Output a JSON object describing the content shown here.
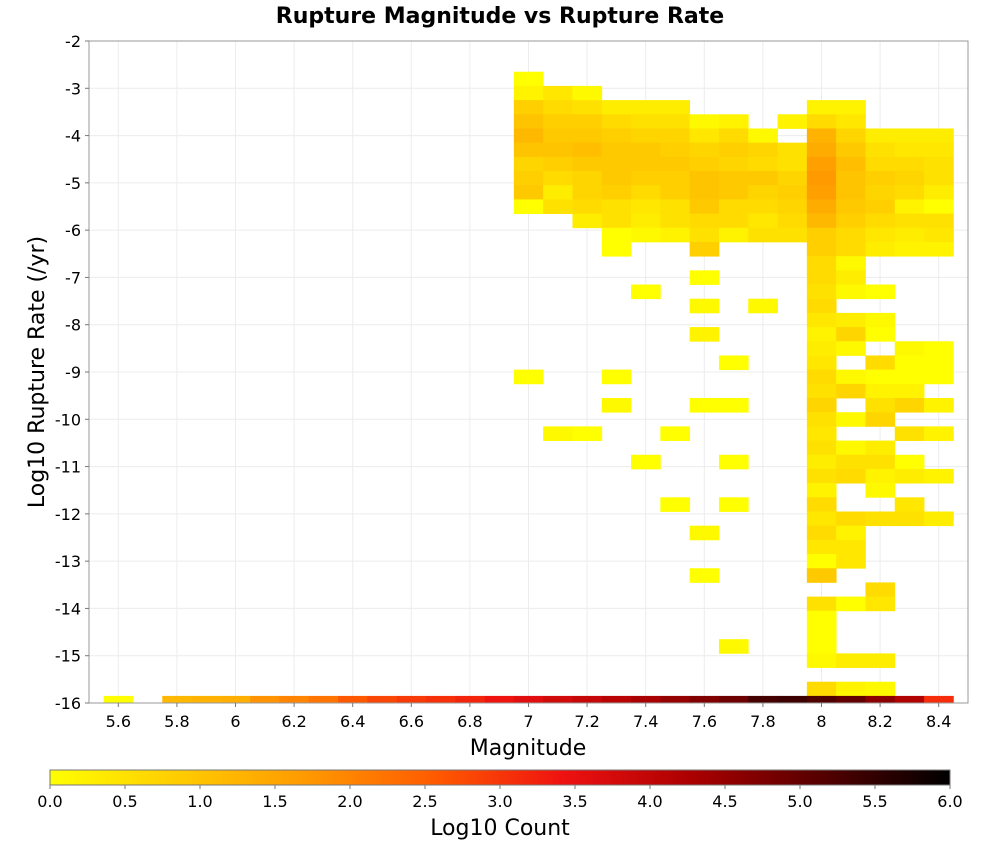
{
  "chart_data": {
    "type": "heatmap",
    "title": "Rupture Magnitude vs Rupture Rate",
    "xlabel": "Magnitude",
    "ylabel": "Log10 Rupture Rate (/yr)",
    "xlim": [
      5.5,
      8.5
    ],
    "ylim": [
      -16,
      -2
    ],
    "xticks": [
      "5.6",
      "5.8",
      "6",
      "6.2",
      "6.4",
      "6.6",
      "6.8",
      "7",
      "7.2",
      "7.4",
      "7.6",
      "7.8",
      "8",
      "8.2",
      "8.4"
    ],
    "xtick_values": [
      5.6,
      5.8,
      6,
      6.2,
      6.4,
      6.6,
      6.8,
      7,
      7.2,
      7.4,
      7.6,
      7.8,
      8,
      8.2,
      8.4
    ],
    "yticks": [
      "-2",
      "-3",
      "-4",
      "-5",
      "-6",
      "-7",
      "-8",
      "-9",
      "-10",
      "-11",
      "-12",
      "-13",
      "-14",
      "-15",
      "-16"
    ],
    "ytick_values": [
      -2,
      -3,
      -4,
      -5,
      -6,
      -7,
      -8,
      -9,
      -10,
      -11,
      -12,
      -13,
      -14,
      -15,
      -16
    ],
    "grid": true,
    "bin_width_x": 0.1,
    "bin_height_y": 0.3,
    "colorbar": {
      "label": "Log10 Count",
      "min": 0.0,
      "max": 6.0,
      "ticks": [
        "0.0",
        "0.5",
        "1.0",
        "1.5",
        "2.0",
        "2.5",
        "3.0",
        "3.5",
        "4.0",
        "4.5",
        "5.0",
        "5.5",
        "6.0"
      ],
      "tick_values": [
        0,
        0.5,
        1,
        1.5,
        2,
        2.5,
        3,
        3.5,
        4,
        4.5,
        5,
        5.5,
        6
      ],
      "colors": [
        "#ffff00",
        "#ffcc00",
        "#ff9900",
        "#ff5a00",
        "#ee1111",
        "#aa0000",
        "#550000",
        "#000000"
      ]
    },
    "bottom_row": {
      "y": -16,
      "x": [
        5.6,
        5.8,
        5.9,
        6.0,
        6.1,
        6.2,
        6.3,
        6.4,
        6.5,
        6.6,
        6.7,
        6.8,
        6.9,
        7.0,
        7.1,
        7.2,
        7.3,
        7.4,
        7.5,
        7.6,
        7.7,
        7.8,
        7.9,
        8.0,
        8.1,
        8.2,
        8.3,
        8.4
      ],
      "values": [
        0.0,
        1.2,
        1.3,
        1.35,
        1.8,
        2.0,
        2.2,
        2.6,
        2.8,
        2.95,
        3.05,
        3.2,
        3.4,
        3.6,
        3.8,
        3.95,
        4.1,
        4.3,
        4.5,
        4.7,
        4.9,
        5.3,
        5.4,
        5.2,
        5.0,
        4.6,
        4.2,
        3.1
      ]
    },
    "cells": [
      [
        7.0,
        -2.8,
        0.0
      ],
      [
        7.0,
        -3.1,
        0.2
      ],
      [
        7.0,
        -3.4,
        0.8
      ],
      [
        7.0,
        -3.7,
        1.0
      ],
      [
        7.0,
        -4.0,
        1.2
      ],
      [
        7.0,
        -4.3,
        1.0
      ],
      [
        7.0,
        -4.6,
        0.7
      ],
      [
        7.0,
        -4.9,
        0.8
      ],
      [
        7.0,
        -5.2,
        0.9
      ],
      [
        7.0,
        -5.5,
        0.0
      ],
      [
        7.1,
        -3.1,
        0.4
      ],
      [
        7.1,
        -3.4,
        0.6
      ],
      [
        7.1,
        -3.7,
        0.8
      ],
      [
        7.1,
        -4.0,
        0.9
      ],
      [
        7.1,
        -4.3,
        1.0
      ],
      [
        7.1,
        -4.6,
        0.8
      ],
      [
        7.1,
        -4.9,
        0.6
      ],
      [
        7.1,
        -5.2,
        0.3
      ],
      [
        7.1,
        -5.5,
        0.5
      ],
      [
        7.2,
        -3.1,
        0.1
      ],
      [
        7.2,
        -3.4,
        0.5
      ],
      [
        7.2,
        -3.7,
        0.8
      ],
      [
        7.2,
        -4.0,
        0.9
      ],
      [
        7.2,
        -4.3,
        1.1
      ],
      [
        7.2,
        -4.6,
        0.9
      ],
      [
        7.2,
        -4.9,
        0.7
      ],
      [
        7.2,
        -5.2,
        0.7
      ],
      [
        7.2,
        -5.5,
        0.6
      ],
      [
        7.2,
        -5.8,
        0.3
      ],
      [
        7.3,
        -3.4,
        0.3
      ],
      [
        7.3,
        -3.7,
        0.6
      ],
      [
        7.3,
        -4.0,
        0.8
      ],
      [
        7.3,
        -4.3,
        0.9
      ],
      [
        7.3,
        -4.6,
        0.9
      ],
      [
        7.3,
        -4.9,
        0.9
      ],
      [
        7.3,
        -5.2,
        0.8
      ],
      [
        7.3,
        -5.5,
        0.5
      ],
      [
        7.3,
        -5.8,
        0.5
      ],
      [
        7.3,
        -6.1,
        0.0
      ],
      [
        7.3,
        -6.4,
        0.0
      ],
      [
        7.4,
        -3.4,
        0.3
      ],
      [
        7.4,
        -3.7,
        0.5
      ],
      [
        7.4,
        -4.0,
        0.7
      ],
      [
        7.4,
        -4.3,
        0.9
      ],
      [
        7.4,
        -4.6,
        0.9
      ],
      [
        7.4,
        -4.9,
        0.8
      ],
      [
        7.4,
        -5.2,
        0.6
      ],
      [
        7.4,
        -5.5,
        0.4
      ],
      [
        7.4,
        -5.8,
        0.3
      ],
      [
        7.4,
        -6.1,
        0.1
      ],
      [
        7.5,
        -3.4,
        0.3
      ],
      [
        7.5,
        -3.7,
        0.5
      ],
      [
        7.5,
        -4.0,
        0.7
      ],
      [
        7.5,
        -4.3,
        0.8
      ],
      [
        7.5,
        -4.6,
        0.9
      ],
      [
        7.5,
        -4.9,
        0.8
      ],
      [
        7.5,
        -5.2,
        0.8
      ],
      [
        7.5,
        -5.5,
        0.5
      ],
      [
        7.5,
        -5.8,
        0.5
      ],
      [
        7.5,
        -6.1,
        0.2
      ],
      [
        7.6,
        -3.7,
        0.1
      ],
      [
        7.6,
        -4.0,
        0.4
      ],
      [
        7.6,
        -4.3,
        0.7
      ],
      [
        7.6,
        -4.6,
        0.8
      ],
      [
        7.6,
        -4.9,
        1.0
      ],
      [
        7.6,
        -5.2,
        1.0
      ],
      [
        7.6,
        -5.5,
        0.9
      ],
      [
        7.6,
        -5.8,
        0.6
      ],
      [
        7.6,
        -6.1,
        0.5
      ],
      [
        7.6,
        -6.4,
        0.8
      ],
      [
        7.7,
        -3.7,
        0.2
      ],
      [
        7.7,
        -4.0,
        0.6
      ],
      [
        7.7,
        -4.3,
        0.8
      ],
      [
        7.7,
        -4.6,
        0.7
      ],
      [
        7.7,
        -4.9,
        0.9
      ],
      [
        7.7,
        -5.2,
        0.9
      ],
      [
        7.7,
        -5.5,
        0.6
      ],
      [
        7.7,
        -5.8,
        0.6
      ],
      [
        7.7,
        -6.1,
        0.2
      ],
      [
        7.8,
        -4.0,
        0.1
      ],
      [
        7.8,
        -4.3,
        0.7
      ],
      [
        7.8,
        -4.6,
        0.6
      ],
      [
        7.8,
        -4.9,
        0.9
      ],
      [
        7.8,
        -5.2,
        0.7
      ],
      [
        7.8,
        -5.5,
        0.6
      ],
      [
        7.8,
        -5.8,
        0.4
      ],
      [
        7.8,
        -6.1,
        0.5
      ],
      [
        7.9,
        -3.7,
        0.2
      ],
      [
        7.9,
        -4.3,
        0.5
      ],
      [
        7.9,
        -4.6,
        0.5
      ],
      [
        7.9,
        -4.9,
        0.7
      ],
      [
        7.9,
        -5.2,
        0.8
      ],
      [
        7.9,
        -5.5,
        0.7
      ],
      [
        7.9,
        -5.8,
        0.6
      ],
      [
        7.9,
        -6.1,
        0.5
      ],
      [
        8.0,
        -3.4,
        0.2
      ],
      [
        8.0,
        -3.7,
        0.6
      ],
      [
        8.0,
        -4.0,
        1.3
      ],
      [
        8.0,
        -4.3,
        1.4
      ],
      [
        8.0,
        -4.6,
        1.6
      ],
      [
        8.0,
        -4.9,
        1.7
      ],
      [
        8.0,
        -5.2,
        1.6
      ],
      [
        8.0,
        -5.5,
        1.4
      ],
      [
        8.0,
        -5.8,
        1.2
      ],
      [
        8.0,
        -6.1,
        0.8
      ],
      [
        8.0,
        -6.4,
        0.8
      ],
      [
        8.0,
        -6.7,
        0.6
      ],
      [
        8.1,
        -3.4,
        0.2
      ],
      [
        8.1,
        -3.7,
        0.4
      ],
      [
        8.1,
        -4.0,
        0.7
      ],
      [
        8.1,
        -4.3,
        0.9
      ],
      [
        8.1,
        -4.6,
        1.1
      ],
      [
        8.1,
        -4.9,
        1.0
      ],
      [
        8.1,
        -5.2,
        1.0
      ],
      [
        8.1,
        -5.5,
        0.9
      ],
      [
        8.1,
        -5.8,
        0.8
      ],
      [
        8.1,
        -6.1,
        0.6
      ],
      [
        8.1,
        -6.4,
        0.6
      ],
      [
        8.1,
        -6.7,
        0.1
      ],
      [
        8.2,
        -4.0,
        0.3
      ],
      [
        8.2,
        -4.3,
        0.5
      ],
      [
        8.2,
        -4.6,
        0.6
      ],
      [
        8.2,
        -4.9,
        0.8
      ],
      [
        8.2,
        -5.2,
        0.7
      ],
      [
        8.2,
        -5.5,
        0.8
      ],
      [
        8.2,
        -5.8,
        0.6
      ],
      [
        8.2,
        -6.1,
        0.4
      ],
      [
        8.2,
        -6.4,
        0.3
      ],
      [
        8.3,
        -4.0,
        0.3
      ],
      [
        8.3,
        -4.3,
        0.4
      ],
      [
        8.3,
        -4.6,
        0.6
      ],
      [
        8.3,
        -4.9,
        0.7
      ],
      [
        8.3,
        -5.2,
        0.6
      ],
      [
        8.3,
        -5.5,
        0.2
      ],
      [
        8.3,
        -5.8,
        0.5
      ],
      [
        8.3,
        -6.1,
        0.3
      ],
      [
        8.3,
        -6.4,
        0.2
      ],
      [
        8.4,
        -4.0,
        0.3
      ],
      [
        8.4,
        -4.3,
        0.4
      ],
      [
        8.4,
        -4.6,
        0.5
      ],
      [
        8.4,
        -4.9,
        0.5
      ],
      [
        8.4,
        -5.2,
        0.3
      ],
      [
        8.4,
        -5.5,
        0.0
      ],
      [
        8.4,
        -5.8,
        0.5
      ],
      [
        8.4,
        -6.1,
        0.4
      ],
      [
        8.4,
        -6.4,
        0.2
      ],
      [
        8.0,
        -7.0,
        0.6
      ],
      [
        8.0,
        -7.3,
        0.5
      ],
      [
        8.0,
        -7.6,
        0.6
      ],
      [
        8.0,
        -7.9,
        0.4
      ],
      [
        8.0,
        -8.2,
        0.2
      ],
      [
        8.0,
        -8.5,
        0.3
      ],
      [
        8.0,
        -8.8,
        0.4
      ],
      [
        8.0,
        -9.1,
        0.6
      ],
      [
        8.0,
        -9.4,
        0.5
      ],
      [
        8.0,
        -9.7,
        0.7
      ],
      [
        8.0,
        -10.0,
        0.5
      ],
      [
        8.0,
        -10.3,
        0.4
      ],
      [
        8.0,
        -10.6,
        0.5
      ],
      [
        8.0,
        -10.9,
        0.3
      ],
      [
        8.0,
        -11.2,
        0.5
      ],
      [
        8.0,
        -11.5,
        0.2
      ],
      [
        8.0,
        -11.8,
        0.6
      ],
      [
        8.0,
        -12.1,
        0.4
      ],
      [
        8.0,
        -12.4,
        0.6
      ],
      [
        8.0,
        -12.7,
        0.4
      ],
      [
        8.0,
        -13.0,
        0.0
      ],
      [
        8.0,
        -13.3,
        0.9
      ],
      [
        8.0,
        -13.9,
        0.5
      ],
      [
        8.0,
        -14.2,
        0.0
      ],
      [
        8.0,
        -14.5,
        0.0
      ],
      [
        8.0,
        -14.8,
        0.0
      ],
      [
        8.0,
        -15.1,
        0.1
      ],
      [
        8.0,
        -15.7,
        0.6
      ],
      [
        8.1,
        -7.0,
        0.3
      ],
      [
        8.1,
        -7.3,
        0.1
      ],
      [
        8.1,
        -7.9,
        0.3
      ],
      [
        8.1,
        -8.2,
        0.7
      ],
      [
        8.1,
        -8.5,
        0.1
      ],
      [
        8.1,
        -9.1,
        0.1
      ],
      [
        8.1,
        -9.4,
        0.7
      ],
      [
        8.1,
        -10.0,
        0.1
      ],
      [
        8.1,
        -10.6,
        0.1
      ],
      [
        8.1,
        -10.9,
        0.5
      ],
      [
        8.1,
        -11.2,
        0.6
      ],
      [
        8.1,
        -12.1,
        0.6
      ],
      [
        8.1,
        -12.4,
        0.2
      ],
      [
        8.1,
        -12.7,
        0.4
      ],
      [
        8.1,
        -13.0,
        0.4
      ],
      [
        8.1,
        -13.9,
        0.0
      ],
      [
        8.1,
        -15.1,
        0.3
      ],
      [
        8.1,
        -15.7,
        0.2
      ],
      [
        8.1,
        -15.9,
        0.1
      ],
      [
        8.2,
        -7.3,
        0.0
      ],
      [
        8.2,
        -7.9,
        0.1
      ],
      [
        8.2,
        -8.2,
        0.0
      ],
      [
        8.2,
        -8.8,
        0.6
      ],
      [
        8.2,
        -9.1,
        0.0
      ],
      [
        8.2,
        -9.4,
        0.2
      ],
      [
        8.2,
        -9.7,
        0.5
      ],
      [
        8.2,
        -10.0,
        0.7
      ],
      [
        8.2,
        -10.6,
        0.3
      ],
      [
        8.2,
        -10.9,
        0.5
      ],
      [
        8.2,
        -11.2,
        0.2
      ],
      [
        8.2,
        -11.5,
        0.1
      ],
      [
        8.2,
        -12.1,
        0.5
      ],
      [
        8.2,
        -13.6,
        0.6
      ],
      [
        8.2,
        -13.9,
        0.4
      ],
      [
        8.2,
        -15.1,
        0.3
      ],
      [
        8.2,
        -15.7,
        0.1
      ],
      [
        8.3,
        -8.5,
        0.1
      ],
      [
        8.3,
        -8.8,
        0.0
      ],
      [
        8.3,
        -9.1,
        0.0
      ],
      [
        8.3,
        -9.4,
        0.2
      ],
      [
        8.3,
        -9.7,
        0.7
      ],
      [
        8.3,
        -10.3,
        0.5
      ],
      [
        8.3,
        -10.9,
        0.0
      ],
      [
        8.3,
        -11.2,
        0.3
      ],
      [
        8.3,
        -11.8,
        0.4
      ],
      [
        8.3,
        -12.1,
        0.5
      ],
      [
        8.4,
        -8.5,
        0.0
      ],
      [
        8.4,
        -8.8,
        0.0
      ],
      [
        8.4,
        -9.1,
        0.0
      ],
      [
        8.4,
        -9.7,
        0.2
      ],
      [
        8.4,
        -10.3,
        0.2
      ],
      [
        8.4,
        -11.2,
        0.2
      ],
      [
        8.4,
        -12.1,
        0.3
      ],
      [
        7.0,
        -9.1,
        0.0
      ],
      [
        7.1,
        -10.3,
        0.1
      ],
      [
        7.2,
        -10.3,
        0.0
      ],
      [
        7.3,
        -9.7,
        0.1
      ],
      [
        7.3,
        -9.1,
        0.0
      ],
      [
        7.4,
        -7.3,
        0.0
      ],
      [
        7.4,
        -10.9,
        0.0
      ],
      [
        7.5,
        -10.3,
        0.0
      ],
      [
        7.5,
        -11.8,
        0.0
      ],
      [
        7.6,
        -7.0,
        0.0
      ],
      [
        7.6,
        -7.6,
        0.1
      ],
      [
        7.6,
        -8.2,
        0.2
      ],
      [
        7.6,
        -9.7,
        0.0
      ],
      [
        7.6,
        -12.4,
        0.1
      ],
      [
        7.6,
        -13.3,
        0.0
      ],
      [
        7.7,
        -8.8,
        0.0
      ],
      [
        7.7,
        -9.7,
        0.0
      ],
      [
        7.7,
        -10.9,
        0.0
      ],
      [
        7.7,
        -11.8,
        0.0
      ],
      [
        7.7,
        -14.8,
        0.1
      ],
      [
        7.8,
        -7.6,
        0.1
      ]
    ]
  }
}
